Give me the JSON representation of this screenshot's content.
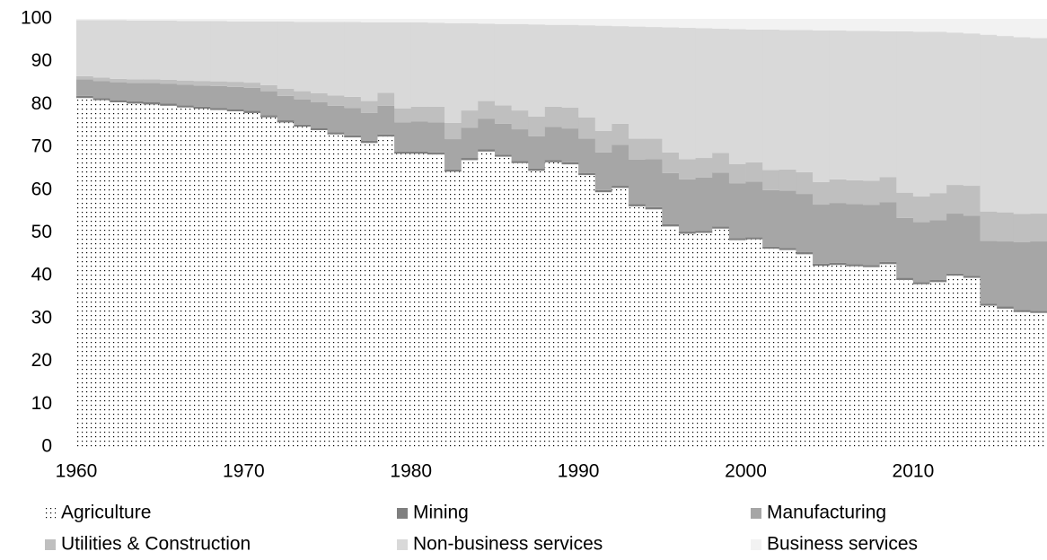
{
  "chart_data": {
    "type": "stacked_bar",
    "categories": [
      1960,
      null,
      null,
      null,
      null,
      null,
      null,
      null,
      null,
      null,
      1970,
      null,
      null,
      null,
      null,
      null,
      null,
      null,
      null,
      null,
      1980,
      null,
      null,
      null,
      null,
      null,
      null,
      null,
      null,
      null,
      1990,
      null,
      null,
      null,
      null,
      null,
      null,
      null,
      null,
      null,
      2000,
      null,
      null,
      null,
      null,
      null,
      null,
      null,
      null,
      null,
      2010,
      null,
      null,
      null,
      null,
      null,
      null,
      null
    ],
    "series": [
      {
        "name": "Agriculture",
        "color": "#ffffff",
        "pattern": "dots",
        "values": [
          81.5,
          81,
          80.5,
          80.2,
          80,
          79.7,
          79.3,
          79,
          78.7,
          78.4,
          78,
          77,
          75.8,
          74.8,
          74,
          73,
          72.3,
          71,
          72.5,
          68.5,
          68.5,
          68.3,
          64.3,
          67,
          69,
          67.8,
          66.3,
          64.5,
          66.5,
          66,
          63.5,
          59.5,
          60.5,
          56.2,
          55.5,
          51.5,
          49.8,
          50,
          51,
          48.3,
          48.5,
          46.3,
          46,
          45,
          42.3,
          42.5,
          42.2,
          42,
          42.7,
          39,
          38,
          38.5,
          40,
          39.5,
          33,
          32.3,
          31.5,
          31.3
        ]
      },
      {
        "name": "Mining",
        "color": "#7f7f7f",
        "values": [
          0.5,
          0.5,
          0.5,
          0.5,
          0.5,
          0.5,
          0.5,
          0.5,
          0.5,
          0.5,
          0.5,
          0.5,
          0.5,
          0.5,
          0.5,
          0.5,
          0.5,
          0.5,
          0.5,
          0.5,
          0.5,
          0.5,
          0.5,
          0.5,
          0.5,
          0.5,
          0.5,
          0.5,
          0.5,
          0.5,
          0.5,
          0.5,
          0.5,
          0.5,
          0.5,
          0.5,
          0.5,
          0.5,
          0.5,
          0.5,
          0.5,
          0.5,
          0.5,
          0.5,
          0.5,
          0.5,
          0.5,
          0.5,
          0.5,
          0.5,
          0.5,
          0.5,
          0.5,
          0.5,
          0.5,
          0.5,
          0.5,
          0.5
        ]
      },
      {
        "name": "Manufacturing",
        "color": "#a6a6a6",
        "values": [
          3.9,
          4.0,
          4.2,
          4.3,
          4.5,
          4.6,
          4.8,
          4.9,
          5.1,
          5.2,
          5.4,
          5.6,
          5.7,
          5.9,
          6.0,
          6.2,
          6.4,
          6.5,
          6.7,
          6.8,
          7.0,
          7.0,
          7.1,
          7.1,
          7.2,
          7.2,
          7.4,
          7.6,
          7.8,
          7.9,
          8.0,
          8.8,
          9.6,
          10.4,
          11.2,
          12.0,
          12.2,
          12.4,
          12.6,
          12.8,
          13.0,
          13.2,
          13.4,
          13.6,
          13.8,
          14.0,
          14.0,
          14.0,
          14.0,
          14.0,
          14.0,
          14.0,
          14.0,
          14.0,
          14.6,
          15.2,
          15.8,
          16.2
        ]
      },
      {
        "name": "Utilities & Construction",
        "color": "#bfbfbf",
        "values": [
          0.7,
          0.8,
          0.8,
          0.9,
          0.9,
          1.0,
          1.0,
          1.1,
          1.1,
          1.2,
          1.2,
          1.4,
          1.7,
          1.9,
          2.1,
          2.4,
          2.6,
          2.8,
          3.0,
          3.3,
          3.5,
          3.7,
          3.8,
          4.0,
          4.1,
          4.3,
          4.4,
          4.6,
          4.7,
          4.9,
          5.0,
          5.0,
          4.9,
          4.9,
          4.8,
          4.8,
          4.7,
          4.6,
          4.6,
          4.5,
          4.5,
          4.7,
          4.9,
          5.1,
          5.3,
          5.5,
          5.6,
          5.7,
          5.8,
          5.9,
          6.0,
          6.3,
          6.7,
          7.0,
          6.9,
          6.8,
          6.6,
          6.5
        ]
      },
      {
        "name": "Non-business services",
        "color": "#d9d9d9",
        "values": [
          13.1,
          13.4,
          13.7,
          13.7,
          13.7,
          13.8,
          13.9,
          14.0,
          14.1,
          14.1,
          14.3,
          14.9,
          15.7,
          16.2,
          16.7,
          17.2,
          17.5,
          18.4,
          16.5,
          20.1,
          19.7,
          19.6,
          23.3,
          20.4,
          18.1,
          19.0,
          20.2,
          21.5,
          19.1,
          19.3,
          21.5,
          24.6,
          22.8,
          26.2,
          26.1,
          29.2,
          30.7,
          30.3,
          29.0,
          31.5,
          31.0,
          32.8,
          32.6,
          33.2,
          35.4,
          34.8,
          34.9,
          35.0,
          34.1,
          37.7,
          38.5,
          37.7,
          35.6,
          35.6,
          41.3,
          41.2,
          41.3,
          41.0
        ]
      },
      {
        "name": "Business services",
        "color": "#f2f2f2",
        "values": [
          0.3,
          0.3,
          0.3,
          0.4,
          0.4,
          0.4,
          0.5,
          0.5,
          0.5,
          0.6,
          0.6,
          0.6,
          0.6,
          0.7,
          0.7,
          0.7,
          0.7,
          0.8,
          0.8,
          0.8,
          0.8,
          0.9,
          1.0,
          1.0,
          1.1,
          1.2,
          1.2,
          1.3,
          1.4,
          1.4,
          1.5,
          1.6,
          1.7,
          1.8,
          1.9,
          2.0,
          2.1,
          2.2,
          2.3,
          2.4,
          2.5,
          2.5,
          2.6,
          2.6,
          2.7,
          2.7,
          2.8,
          2.8,
          2.9,
          2.9,
          3.0,
          3.0,
          3.2,
          3.4,
          3.7,
          4.0,
          4.3,
          4.5
        ]
      }
    ],
    "ylim": [
      0,
      100
    ],
    "yticks": [
      0,
      10,
      20,
      30,
      40,
      50,
      60,
      70,
      80,
      90,
      100
    ],
    "grid": false
  }
}
